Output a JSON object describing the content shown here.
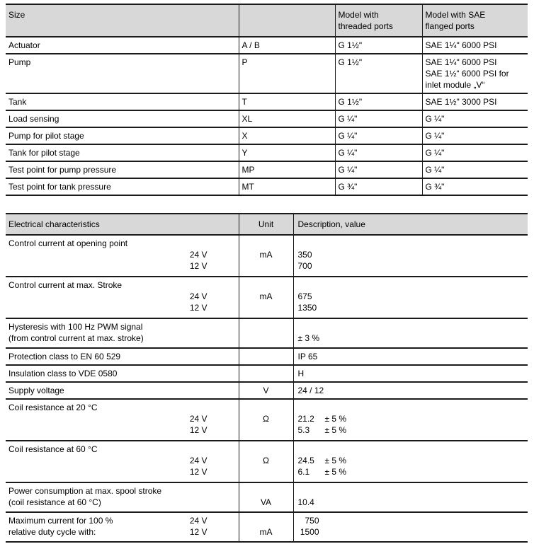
{
  "page": {
    "background": "#ffffff",
    "header_bg": "#d8d8d8",
    "border_color": "#1a1a1a"
  },
  "size_table": {
    "headers": {
      "size": "Size",
      "code": "",
      "threaded": [
        "Model with",
        "threaded ports"
      ],
      "flanged": [
        "Model with SAE",
        "flanged ports"
      ]
    },
    "rows": [
      {
        "name": "Actuator",
        "code": "A / B",
        "threaded": "G 1½\"",
        "flanged": [
          "SAE 1¼\" 6000 PSI"
        ]
      },
      {
        "name": "Pump",
        "code": "P",
        "threaded": "G 1½\"",
        "flanged": [
          "SAE 1¼\" 6000 PSI",
          "SAE 1½“ 6000 PSI for",
          "inlet module „V“"
        ]
      },
      {
        "name": "Tank",
        "code": "T",
        "threaded": "G 1½\"",
        "flanged": [
          "SAE 1½\" 3000 PSI"
        ]
      },
      {
        "name": "Load sensing",
        "code": "XL",
        "threaded": "G ¼\"",
        "flanged": [
          "G ¼\""
        ]
      },
      {
        "name": "Pump for pilot stage",
        "code": "X",
        "threaded": "G ¼\"",
        "flanged": [
          "G ¼\""
        ]
      },
      {
        "name": "Tank for pilot stage",
        "code": "Y",
        "threaded": "G ¼\"",
        "flanged": [
          "G ¼\""
        ]
      },
      {
        "name": "Test point for pump pressure",
        "code": "MP",
        "threaded": "G ¼\"",
        "flanged": [
          "G ¼\""
        ]
      },
      {
        "name": "Test point for tank pressure",
        "code": "MT",
        "threaded": "G ¾\"",
        "flanged": [
          "G ¾\""
        ]
      }
    ]
  },
  "electrical_table": {
    "headers": {
      "characteristics": "Electrical characteristics",
      "unit": "Unit",
      "description": "Description, value"
    },
    "rows": [
      {
        "label": "Control current at opening point",
        "sub": [
          "24 V",
          "12 V"
        ],
        "unit": "mA",
        "values": [
          "350",
          "700"
        ]
      },
      {
        "label": "Control current at max. Stroke",
        "sub": [
          "24 V",
          "12 V"
        ],
        "unit": "mA",
        "values": [
          "675",
          "1350"
        ]
      },
      {
        "label": [
          "Hysteresis with 100 Hz PWM signal",
          "(from control current at max. stroke)"
        ],
        "unit": "",
        "values": [
          "± 3 %"
        ]
      },
      {
        "label": "Protection class to EN 60 529",
        "unit": "",
        "values": [
          "IP 65"
        ]
      },
      {
        "label": "Insulation class to VDE 0580",
        "unit": "",
        "values": [
          "H"
        ]
      },
      {
        "label": "Supply voltage",
        "unit": "V",
        "values": [
          "24 / 12"
        ]
      },
      {
        "label": "Coil resistance at 20 °C",
        "sub": [
          "24 V",
          "12 V"
        ],
        "unit": "Ω",
        "values": [
          "21.2",
          "5.3"
        ],
        "tolerance": [
          "± 5 %",
          "± 5 %"
        ]
      },
      {
        "label": "Coil resistance at 60 °C",
        "sub": [
          "24 V",
          "12 V"
        ],
        "unit": "Ω",
        "values": [
          "24.5",
          "6.1"
        ],
        "tolerance": [
          "± 5 %",
          "± 5 %"
        ]
      },
      {
        "label": [
          "Power consumption at max. spool stroke",
          "(coil resistance at 60 °C)"
        ],
        "unit": "VA",
        "values": [
          "10.4"
        ]
      },
      {
        "label": [
          "Maximum current for 100 %",
          "relative duty cycle with:"
        ],
        "sub": [
          "24 V",
          "12 V"
        ],
        "unit": "mA",
        "values": [
          "750",
          "1500"
        ]
      }
    ]
  }
}
